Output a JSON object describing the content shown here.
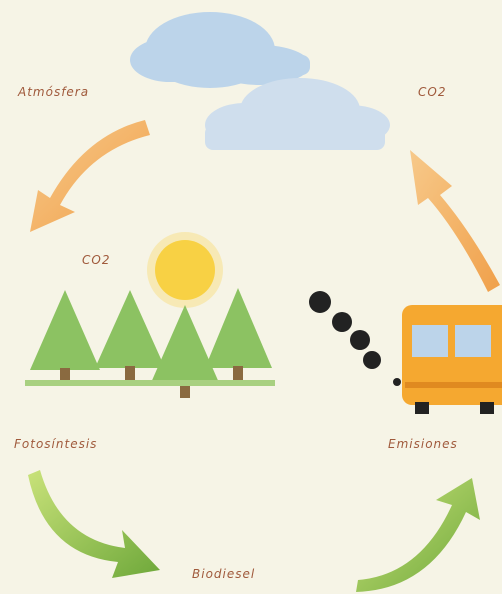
{
  "labels": {
    "atmosphere": "Atmósfera",
    "co2_top": "CO2",
    "co2_sun": "CO2",
    "photosynthesis": "Fotosíntesis",
    "emissions": "Emisiones",
    "biodiesel": "Biodiesel"
  }
}
